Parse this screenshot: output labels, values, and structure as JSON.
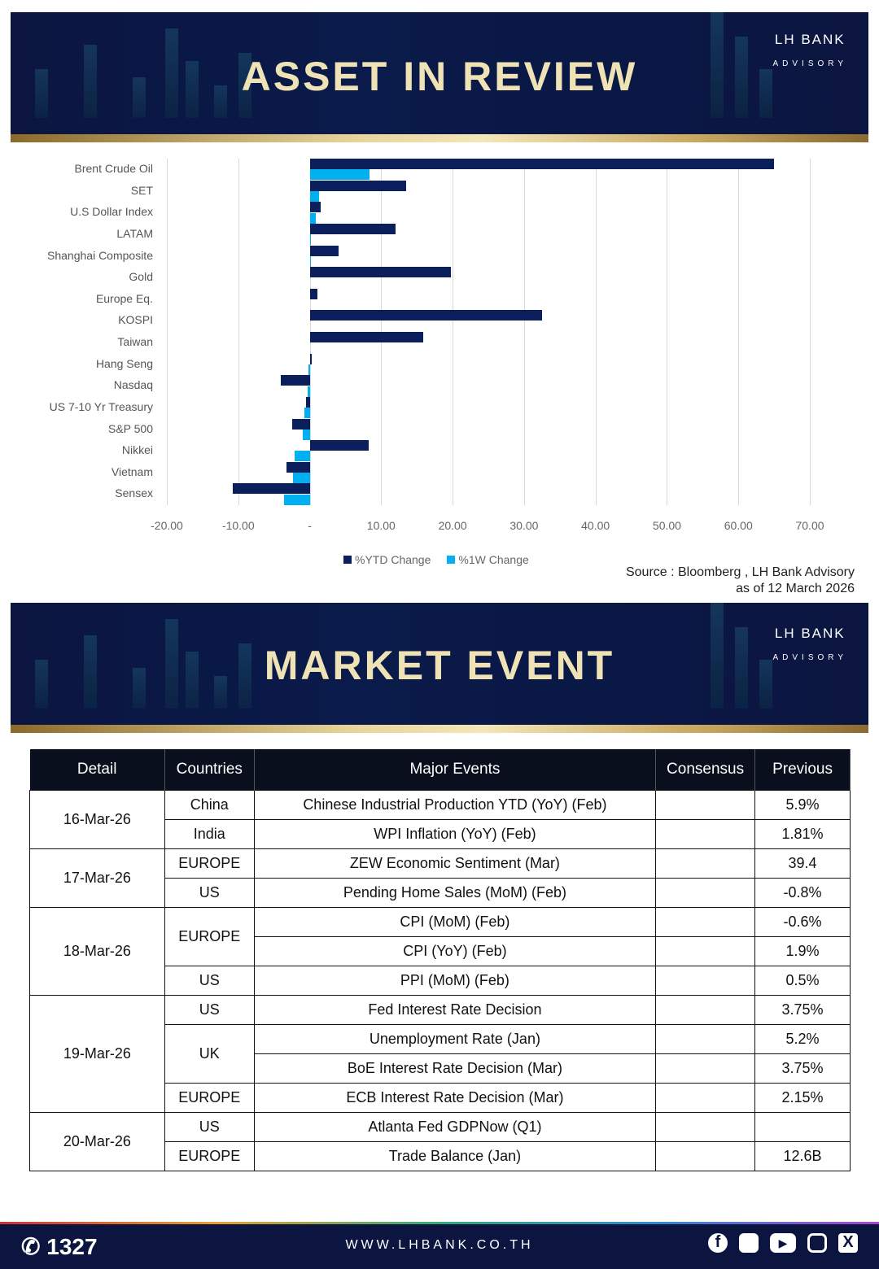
{
  "banner1": {
    "title": "ASSET IN REVIEW",
    "logo_brand": "LH BANK",
    "logo_sub": "ADVISORY"
  },
  "banner2": {
    "title": "MARKET EVENT",
    "logo_brand": "LH BANK",
    "logo_sub": "ADVISORY"
  },
  "chart_data": {
    "type": "bar",
    "orientation": "horizontal",
    "categories": [
      "Brent Crude Oil",
      "SET",
      "U.S Dollar Index",
      "LATAM",
      "Shanghai Composite",
      "Gold",
      "Europe Eq.",
      "KOSPI",
      "Taiwan",
      "Hang Seng",
      "Nasdaq",
      "US 7-10 Yr Treasury",
      "S&P 500",
      "Nikkei",
      "Vietnam",
      "Sensex"
    ],
    "series": [
      {
        "name": "%YTD Change",
        "color": "#0a1f5c",
        "values": [
          65.0,
          13.5,
          1.5,
          12.0,
          4.0,
          19.8,
          1.1,
          32.5,
          15.9,
          0.3,
          -4.0,
          -0.5,
          -2.5,
          8.2,
          -3.2,
          -10.8
        ]
      },
      {
        "name": "%1W Change",
        "color": "#00b0f0",
        "values": [
          8.4,
          1.3,
          0.8,
          0.2,
          0.05,
          0.0,
          0.0,
          0.0,
          0.0,
          -0.2,
          -0.3,
          -0.8,
          -1.0,
          -2.1,
          -2.3,
          -3.6
        ]
      }
    ],
    "xlim": [
      -20,
      70
    ],
    "xticks": [
      -20,
      -10,
      0,
      10,
      20,
      30,
      40,
      50,
      60,
      70
    ],
    "xtick_labels": [
      "-20.00",
      "-10.00",
      "-",
      "10.00",
      "20.00",
      "30.00",
      "40.00",
      "50.00",
      "60.00",
      "70.00"
    ],
    "legend": "bottom"
  },
  "source": {
    "line1": "Source : Bloomberg , LH Bank Advisory",
    "line2": "as of 12 March 2026"
  },
  "table": {
    "headers": [
      "Detail",
      "Countries",
      "Major Events",
      "Consensus",
      "Previous"
    ],
    "rows": [
      {
        "date": "16-Mar-26",
        "span": 2,
        "country": "China",
        "cspan": 1,
        "event": "Chinese Industrial Production YTD (YoY) (Feb)",
        "consensus": "",
        "previous": "5.9%"
      },
      {
        "country": "India",
        "cspan": 1,
        "event": "WPI Inflation (YoY) (Feb)",
        "consensus": "",
        "previous": "1.81%"
      },
      {
        "date": "17-Mar-26",
        "span": 2,
        "country": "EUROPE",
        "cspan": 1,
        "event": "ZEW Economic Sentiment (Mar)",
        "consensus": "",
        "previous": "39.4"
      },
      {
        "country": "US",
        "cspan": 1,
        "event": "Pending Home Sales (MoM) (Feb)",
        "consensus": "",
        "previous": "-0.8%"
      },
      {
        "date": "18-Mar-26",
        "span": 3,
        "country": "EUROPE",
        "cspan": 2,
        "event": "CPI (MoM) (Feb)",
        "consensus": "",
        "previous": "-0.6%"
      },
      {
        "event": "CPI (YoY) (Feb)",
        "consensus": "",
        "previous": "1.9%"
      },
      {
        "country": "US",
        "cspan": 1,
        "event": "PPI (MoM) (Feb)",
        "consensus": "",
        "previous": "0.5%"
      },
      {
        "date": "19-Mar-26",
        "span": 4,
        "country": "US",
        "cspan": 1,
        "event": "Fed Interest Rate Decision",
        "consensus": "",
        "previous": "3.75%"
      },
      {
        "country": "UK",
        "cspan": 2,
        "event": "Unemployment Rate (Jan)",
        "consensus": "",
        "previous": "5.2%"
      },
      {
        "event": "BoE Interest Rate Decision (Mar)",
        "consensus": "",
        "previous": "3.75%"
      },
      {
        "country": "EUROPE",
        "cspan": 1,
        "event": "ECB Interest Rate Decision (Mar)",
        "consensus": "",
        "previous": "2.15%"
      },
      {
        "date": "20-Mar-26",
        "span": 2,
        "country": "US",
        "cspan": 1,
        "event": "Atlanta Fed GDPNow (Q1)",
        "consensus": "",
        "previous": ""
      },
      {
        "country": "EUROPE",
        "cspan": 1,
        "event": "Trade Balance (Jan)",
        "consensus": "",
        "previous": "12.6B"
      }
    ]
  },
  "footer": {
    "phone": "1327",
    "website": "WWW.LHBANK.CO.TH"
  }
}
